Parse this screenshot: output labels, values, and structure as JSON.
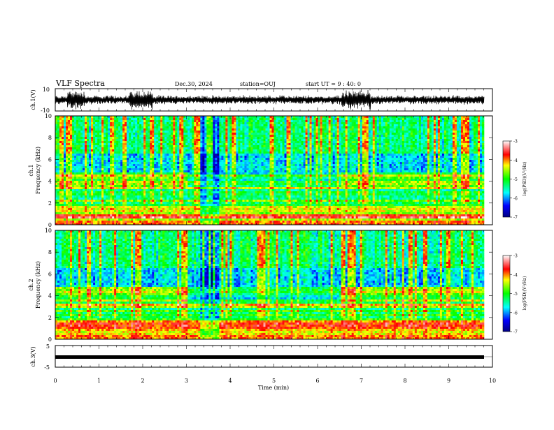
{
  "header": {
    "title": "VLF Spectra",
    "date": "Dec.30, 2024",
    "station": "station=OUJ",
    "start": "start  UT =   9 : 40: 0"
  },
  "chart_data": [
    {
      "type": "line",
      "name": "ch1-waveform",
      "ylabel": "ch.1(V)",
      "ylim": [
        -10,
        10
      ],
      "y_ticks": [
        "10",
        "-10"
      ],
      "xlim": [
        0,
        9.8
      ]
    },
    {
      "type": "heatmap",
      "name": "ch1-spectrogram",
      "ylabel": "ch.1\nFrequency (kHz)",
      "ylim": [
        0,
        10
      ],
      "y_ticks": [
        "10",
        "8",
        "6",
        "4",
        "2",
        "0"
      ],
      "xlim": [
        0,
        9.8
      ],
      "colorbar": {
        "label": "log(PSD)(V²/Hz)",
        "range": [
          -7,
          -3
        ],
        "ticks": [
          "-3",
          "-4",
          "-5",
          "-6",
          "-7"
        ]
      }
    },
    {
      "type": "heatmap",
      "name": "ch2-spectrogram",
      "ylabel": "ch.2\nFrequency (kHz)",
      "ylim": [
        0,
        10
      ],
      "y_ticks": [
        "10",
        "8",
        "6",
        "4",
        "2",
        "0"
      ],
      "xlim": [
        0,
        9.8
      ],
      "colorbar": {
        "label": "log(PSD)(V²/Hz)",
        "range": [
          -7,
          -3
        ],
        "ticks": [
          "-3",
          "-4",
          "-5",
          "-6",
          "-7"
        ]
      }
    },
    {
      "type": "line",
      "name": "ch3-waveform",
      "ylabel": "ch.3(V)",
      "ylim": [
        -5,
        5
      ],
      "y_ticks": [
        "5",
        "0",
        "-5"
      ],
      "xlim": [
        0,
        9.8
      ]
    }
  ],
  "x_axis": {
    "label": "Time (min)",
    "range": [
      0,
      10
    ],
    "ticks": [
      "0",
      "1",
      "2",
      "3",
      "4",
      "5",
      "6",
      "7",
      "8",
      "9",
      "10"
    ]
  }
}
